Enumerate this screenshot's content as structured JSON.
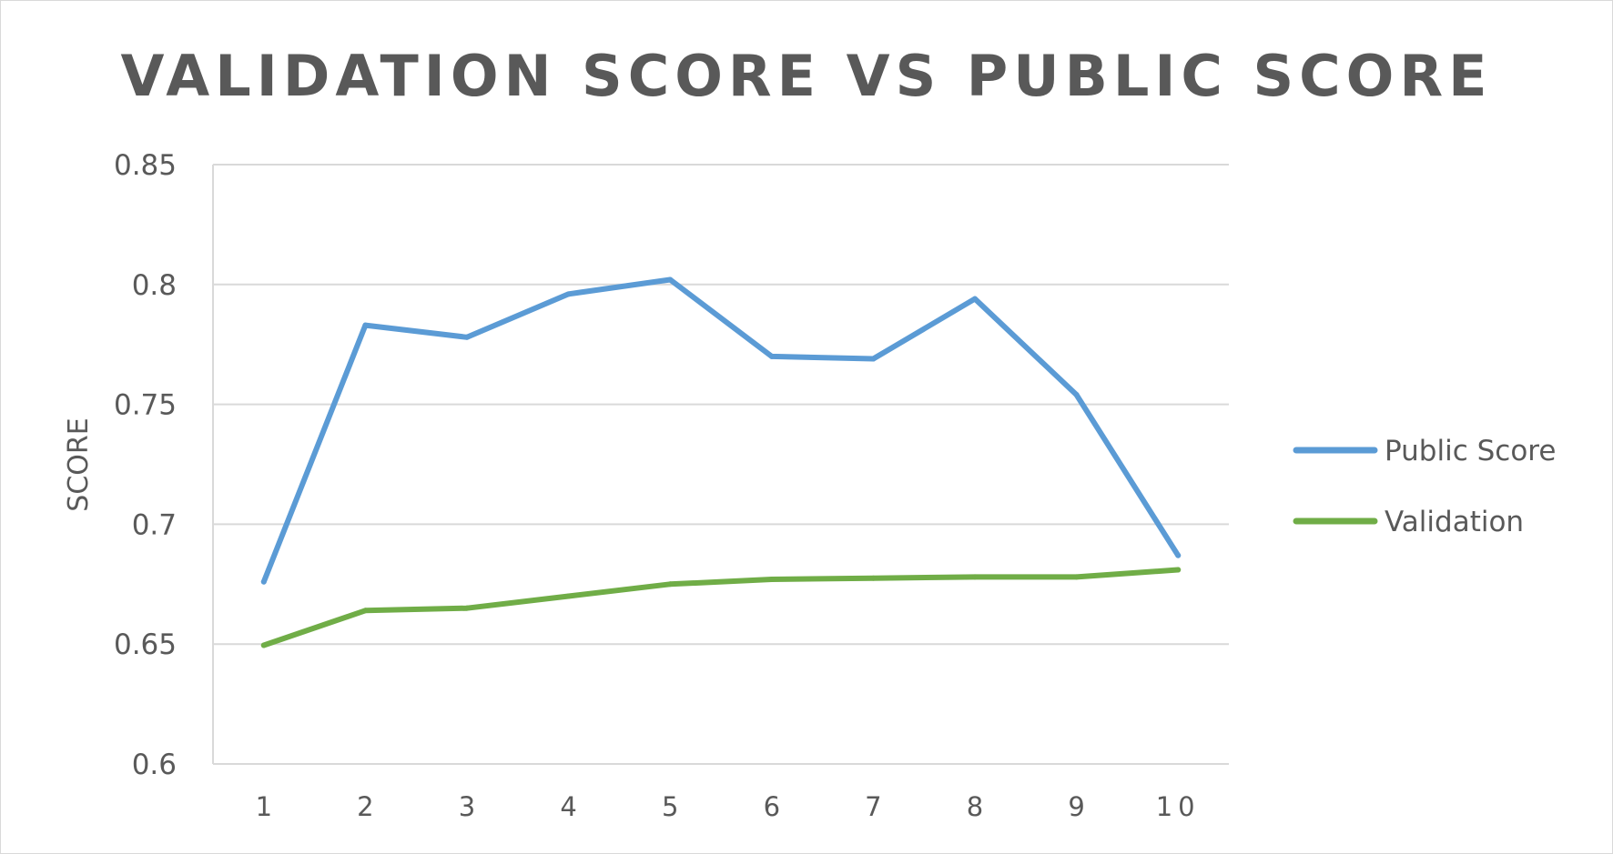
{
  "chart_data": {
    "type": "line",
    "title": "VALIDATION SCORE VS PUBLIC SCORE",
    "xlabel": "",
    "ylabel": "SCORE",
    "categories": [
      "1",
      "2",
      "3",
      "4",
      "5",
      "6",
      "7",
      "8",
      "9",
      "10"
    ],
    "ylim": [
      0.6,
      0.85
    ],
    "yticks": [
      "0.6",
      "0.65",
      "0.7",
      "0.75",
      "0.8",
      "0.85"
    ],
    "grid": true,
    "legend_position": "right",
    "series": [
      {
        "name": "Public Score",
        "color": "#5b9bd5",
        "values": [
          0.676,
          0.783,
          0.778,
          0.796,
          0.802,
          0.77,
          0.769,
          0.794,
          0.754,
          0.687
        ]
      },
      {
        "name": "Validation",
        "color": "#70ad47",
        "values": [
          0.6495,
          0.664,
          0.665,
          0.67,
          0.675,
          0.677,
          0.6775,
          0.678,
          0.678,
          0.681
        ]
      }
    ]
  }
}
